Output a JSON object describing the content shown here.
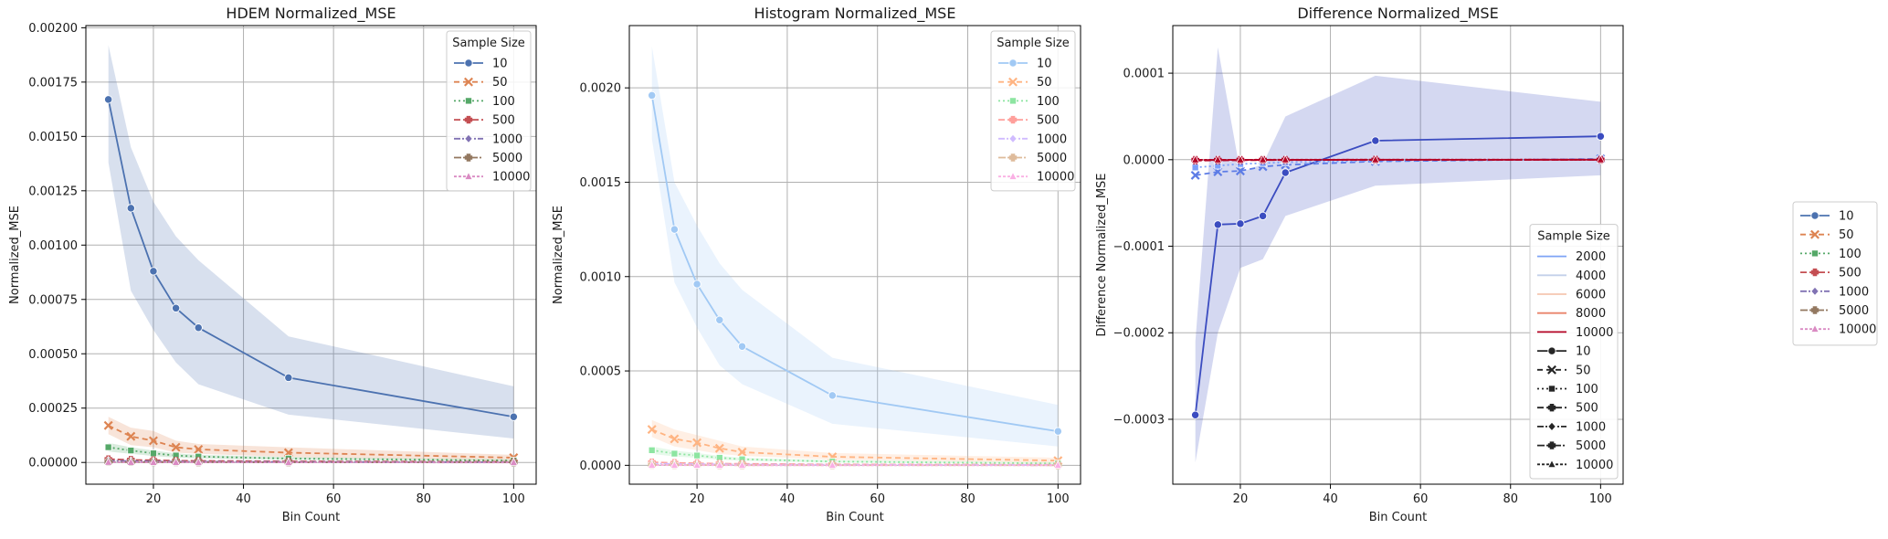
{
  "chart_data": [
    {
      "type": "line",
      "title": "HDEM Normalized_MSE",
      "xlabel": "Bin Count",
      "ylabel": "Normalized_MSE",
      "xlim": [
        5,
        105
      ],
      "ylim": [
        -0.0001,
        0.00201
      ],
      "xticks": [
        20,
        40,
        60,
        80,
        100
      ],
      "xtick_labels": [
        "20",
        "40",
        "60",
        "80",
        "100"
      ],
      "yticks": [
        0,
        0.00025,
        0.0005,
        0.00075,
        0.001,
        0.00125,
        0.0015,
        0.00175,
        0.002
      ],
      "ytick_labels": [
        "0.00000",
        "0.00025",
        "0.00050",
        "0.00075",
        "0.00100",
        "0.00125",
        "0.00150",
        "0.00175",
        "0.00200"
      ],
      "grid": true,
      "legend": {
        "title": "Sample Size",
        "position": "top-right"
      },
      "x": [
        10,
        15,
        20,
        25,
        30,
        50,
        100
      ],
      "series": [
        {
          "name": "10",
          "color": "#4c72b0",
          "dash": "",
          "marker": "circle",
          "values": [
            0.00167,
            0.00117,
            0.00088,
            0.00071,
            0.00062,
            0.00039,
            0.00021
          ],
          "band_upper": [
            0.00192,
            0.00145,
            0.0012,
            0.00104,
            0.00093,
            0.00058,
            0.00035
          ],
          "band_lower": [
            0.00138,
            0.00079,
            0.00061,
            0.00046,
            0.00036,
            0.00022,
            0.00011
          ]
        },
        {
          "name": "50",
          "color": "#dd8452",
          "dash": "6,4",
          "marker": "x",
          "values": [
            0.00017,
            0.00012,
            0.0001,
            7e-05,
            6e-05,
            4.5e-05,
            2.2e-05
          ],
          "band_upper": [
            0.00021,
            0.00016,
            0.000145,
            0.0001,
            8.5e-05,
            7e-05,
            3.5e-05
          ],
          "band_lower": [
            0.00013,
            8e-05,
            7e-05,
            4.5e-05,
            4e-05,
            2.5e-05,
            1e-05
          ]
        },
        {
          "name": "100",
          "color": "#55a868",
          "dash": "2,3",
          "marker": "square",
          "values": [
            7e-05,
            5.5e-05,
            4.2e-05,
            3.2e-05,
            2.7e-05,
            1.8e-05,
            9e-06
          ],
          "band_upper": [
            9e-05,
            7e-05,
            5.5e-05,
            4.2e-05,
            3.5e-05,
            2.5e-05,
            1.4e-05
          ],
          "band_lower": [
            5e-05,
            4e-05,
            3e-05,
            2.2e-05,
            1.9e-05,
            1.2e-05,
            5e-06
          ]
        },
        {
          "name": "500",
          "color": "#c44e52",
          "dash": "7,3",
          "marker": "plus",
          "values": [
            1.5e-05,
            1.2e-05,
            1e-05,
            8e-06,
            7e-06,
            5e-06,
            3e-06
          ]
        },
        {
          "name": "1000",
          "color": "#8172b3",
          "dash": "7,2,2,2",
          "marker": "diamond",
          "values": [
            8e-06,
            6e-06,
            5e-06,
            4e-06,
            3.5e-06,
            2.5e-06,
            1.5e-06
          ]
        },
        {
          "name": "5000",
          "color": "#937860",
          "dash": "8,2,2,2,2,2",
          "marker": "plus",
          "values": [
            2e-06,
            1.5e-06,
            1.2e-06,
            1e-06,
            9e-07,
            6e-07,
            3e-07
          ]
        },
        {
          "name": "10000",
          "color": "#da8bc3",
          "dash": "3,2",
          "marker": "triangle",
          "values": [
            1e-06,
            8e-07,
            6e-07,
            5e-07,
            4e-07,
            3e-07,
            2e-07
          ]
        }
      ]
    },
    {
      "type": "line",
      "title": "Histogram Normalized_MSE",
      "xlabel": "Bin Count",
      "ylabel": "Normalized_MSE",
      "xlim": [
        5,
        105
      ],
      "ylim": [
        -0.0001,
        0.00233
      ],
      "xticks": [
        20,
        40,
        60,
        80,
        100
      ],
      "xtick_labels": [
        "20",
        "40",
        "60",
        "80",
        "100"
      ],
      "yticks": [
        0,
        0.0005,
        0.001,
        0.0015,
        0.002
      ],
      "ytick_labels": [
        "0.0000",
        "0.0005",
        "0.0010",
        "0.0015",
        "0.0020"
      ],
      "grid": true,
      "legend": {
        "title": "Sample Size",
        "position": "top-right"
      },
      "x": [
        10,
        15,
        20,
        25,
        30,
        50,
        100
      ],
      "series": [
        {
          "name": "10",
          "color": "#a1c9f4",
          "dash": "",
          "marker": "circle",
          "values": [
            0.00196,
            0.00125,
            0.00096,
            0.00077,
            0.00063,
            0.00037,
            0.00018
          ],
          "band_upper": [
            0.00222,
            0.0015,
            0.00127,
            0.00107,
            0.00093,
            0.00057,
            0.00032
          ],
          "band_lower": [
            0.00173,
            0.00097,
            0.00073,
            0.00053,
            0.00043,
            0.00022,
            0.0001
          ]
        },
        {
          "name": "50",
          "color": "#ffb482",
          "dash": "6,4",
          "marker": "x",
          "values": [
            0.00019,
            0.00014,
            0.00012,
            9e-05,
            7e-05,
            4.5e-05,
            2.5e-05
          ],
          "band_upper": [
            0.00024,
            0.00019,
            0.00016,
            0.00013,
            0.0001,
            6.5e-05,
            4e-05
          ],
          "band_lower": [
            0.00015,
            0.0001,
            8e-05,
            6e-05,
            5e-05,
            3e-05,
            1.2e-05
          ]
        },
        {
          "name": "100",
          "color": "#8de5a1",
          "dash": "2,3",
          "marker": "square",
          "values": [
            8e-05,
            6.2e-05,
            5.2e-05,
            4e-05,
            3.2e-05,
            2e-05,
            1e-05
          ],
          "band_upper": [
            0.0001,
            7.8e-05,
            6.5e-05,
            5e-05,
            4e-05,
            2.8e-05,
            1.6e-05
          ],
          "band_lower": [
            6e-05,
            4.7e-05,
            4e-05,
            3e-05,
            2.4e-05,
            1.4e-05,
            6e-06
          ]
        },
        {
          "name": "500",
          "color": "#ff9f9b",
          "dash": "7,3",
          "marker": "plus",
          "values": [
            1.6e-05,
            1.3e-05,
            1.1e-05,
            9e-06,
            8e-06,
            5e-06,
            3e-06
          ]
        },
        {
          "name": "1000",
          "color": "#d0bbff",
          "dash": "7,2,2,2",
          "marker": "diamond",
          "values": [
            9e-06,
            7e-06,
            6e-06,
            5e-06,
            4e-06,
            3e-06,
            1.5e-06
          ]
        },
        {
          "name": "5000",
          "color": "#debb9b",
          "dash": "8,2,2,2,2,2",
          "marker": "plus",
          "values": [
            2e-06,
            1.6e-06,
            1.3e-06,
            1e-06,
            9e-07,
            6e-07,
            3e-07
          ]
        },
        {
          "name": "10000",
          "color": "#fab0e4",
          "dash": "3,2",
          "marker": "triangle",
          "values": [
            1e-06,
            8e-07,
            6e-07,
            5e-07,
            4e-07,
            3e-07,
            2e-07
          ]
        }
      ]
    },
    {
      "type": "line",
      "title": "Difference Normalized_MSE",
      "xlabel": "Bin Count",
      "ylabel": "Difference Normalized_MSE",
      "xlim": [
        5,
        105
      ],
      "ylim": [
        -0.000375,
        0.000155
      ],
      "xticks": [
        20,
        40,
        60,
        80,
        100
      ],
      "xtick_labels": [
        "20",
        "40",
        "60",
        "80",
        "100"
      ],
      "yticks": [
        -0.0003,
        -0.0002,
        -0.0001,
        0,
        0.0001
      ],
      "ytick_labels": [
        "−0.0003",
        "−0.0002",
        "−0.0001",
        "0.0000",
        "0.0001"
      ],
      "grid": true,
      "legend": {
        "title": "Sample Size",
        "position": "lower-right",
        "hue_entries": [
          {
            "label": "2000",
            "color": "#7ea3f5"
          },
          {
            "label": "4000",
            "color": "#c4d0ea"
          },
          {
            "label": "6000",
            "color": "#f4c6b0"
          },
          {
            "label": "8000",
            "color": "#e9846b"
          },
          {
            "label": "10000",
            "color": "#b40426"
          }
        ],
        "style_entries": [
          {
            "label": "10",
            "dash": "",
            "marker": "circle"
          },
          {
            "label": "50",
            "dash": "6,4",
            "marker": "x"
          },
          {
            "label": "100",
            "dash": "2,3",
            "marker": "square"
          },
          {
            "label": "500",
            "dash": "7,3",
            "marker": "plus"
          },
          {
            "label": "1000",
            "dash": "7,2,2,2",
            "marker": "diamond"
          },
          {
            "label": "5000",
            "dash": "8,2,2,2,2,2",
            "marker": "plus"
          },
          {
            "label": "10000",
            "dash": "3,2",
            "marker": "triangle"
          }
        ]
      },
      "x": [
        10,
        15,
        20,
        25,
        30,
        50,
        100
      ],
      "series": [
        {
          "name": "10",
          "color": "#3b4cc0",
          "dash": "",
          "marker": "circle",
          "values": [
            -0.000295,
            -7.5e-05,
            -7.4e-05,
            -6.5e-05,
            -1.5e-05,
            2.2e-05,
            2.7e-05
          ],
          "band_upper": [
            -0.00021,
            0.00013,
            -1.5e-05,
            -5e-06,
            5e-05,
            9.7e-05,
            6.7e-05
          ],
          "band_lower": [
            -0.00035,
            -0.0002,
            -0.000125,
            -0.000115,
            -6.5e-05,
            -3e-05,
            -1.8e-05
          ]
        },
        {
          "name": "50",
          "color": "#5d7ce6",
          "dash": "6,4",
          "marker": "x",
          "values": [
            -1.8e-05,
            -1.4e-05,
            -1.3e-05,
            -8e-06,
            -6e-06,
            -2e-06,
            1e-06
          ]
        },
        {
          "name": "100",
          "color": "#7b9ff9",
          "dash": "2,3",
          "marker": "square",
          "values": [
            -9e-06,
            -7e-06,
            -5e-06,
            -4e-06,
            -3e-06,
            -1e-06,
            5e-07
          ]
        },
        {
          "name": "500",
          "color": "#b40426",
          "dash": "7,3",
          "marker": "plus",
          "values": [
            -1e-06,
            -8e-07,
            -6e-07,
            -5e-07,
            -4e-07,
            -2e-07,
            -1e-07
          ]
        },
        {
          "name": "1000",
          "color": "#b40426",
          "dash": "7,2,2,2",
          "marker": "diamond",
          "values": [
            -5e-07,
            -4e-07,
            -3e-07,
            -3e-07,
            -2e-07,
            -1e-07,
            0
          ]
        },
        {
          "name": "5000",
          "color": "#b40426",
          "dash": "8,2,2,2,2,2",
          "marker": "plus",
          "values": [
            -2e-07,
            -2e-07,
            -1e-07,
            -1e-07,
            -1e-07,
            0,
            0
          ]
        },
        {
          "name": "10000",
          "color": "#b40426",
          "dash": "3,2",
          "marker": "triangle",
          "values": [
            -1e-07,
            -1e-07,
            -1e-07,
            0,
            0,
            0,
            0
          ]
        }
      ]
    }
  ],
  "figure_legend": {
    "position": "right",
    "entries": [
      {
        "label": "10",
        "color": "#4c72b0",
        "dash": "",
        "marker": "circle"
      },
      {
        "label": "50",
        "color": "#dd8452",
        "dash": "6,4",
        "marker": "x"
      },
      {
        "label": "100",
        "color": "#55a868",
        "dash": "2,3",
        "marker": "square"
      },
      {
        "label": "500",
        "color": "#c44e52",
        "dash": "7,3",
        "marker": "plus"
      },
      {
        "label": "1000",
        "color": "#8172b3",
        "dash": "7,2,2,2",
        "marker": "diamond"
      },
      {
        "label": "5000",
        "color": "#937860",
        "dash": "8,2,2,2,2,2",
        "marker": "plus"
      },
      {
        "label": "10000",
        "color": "#da8bc3",
        "dash": "3,2",
        "marker": "triangle"
      }
    ]
  }
}
